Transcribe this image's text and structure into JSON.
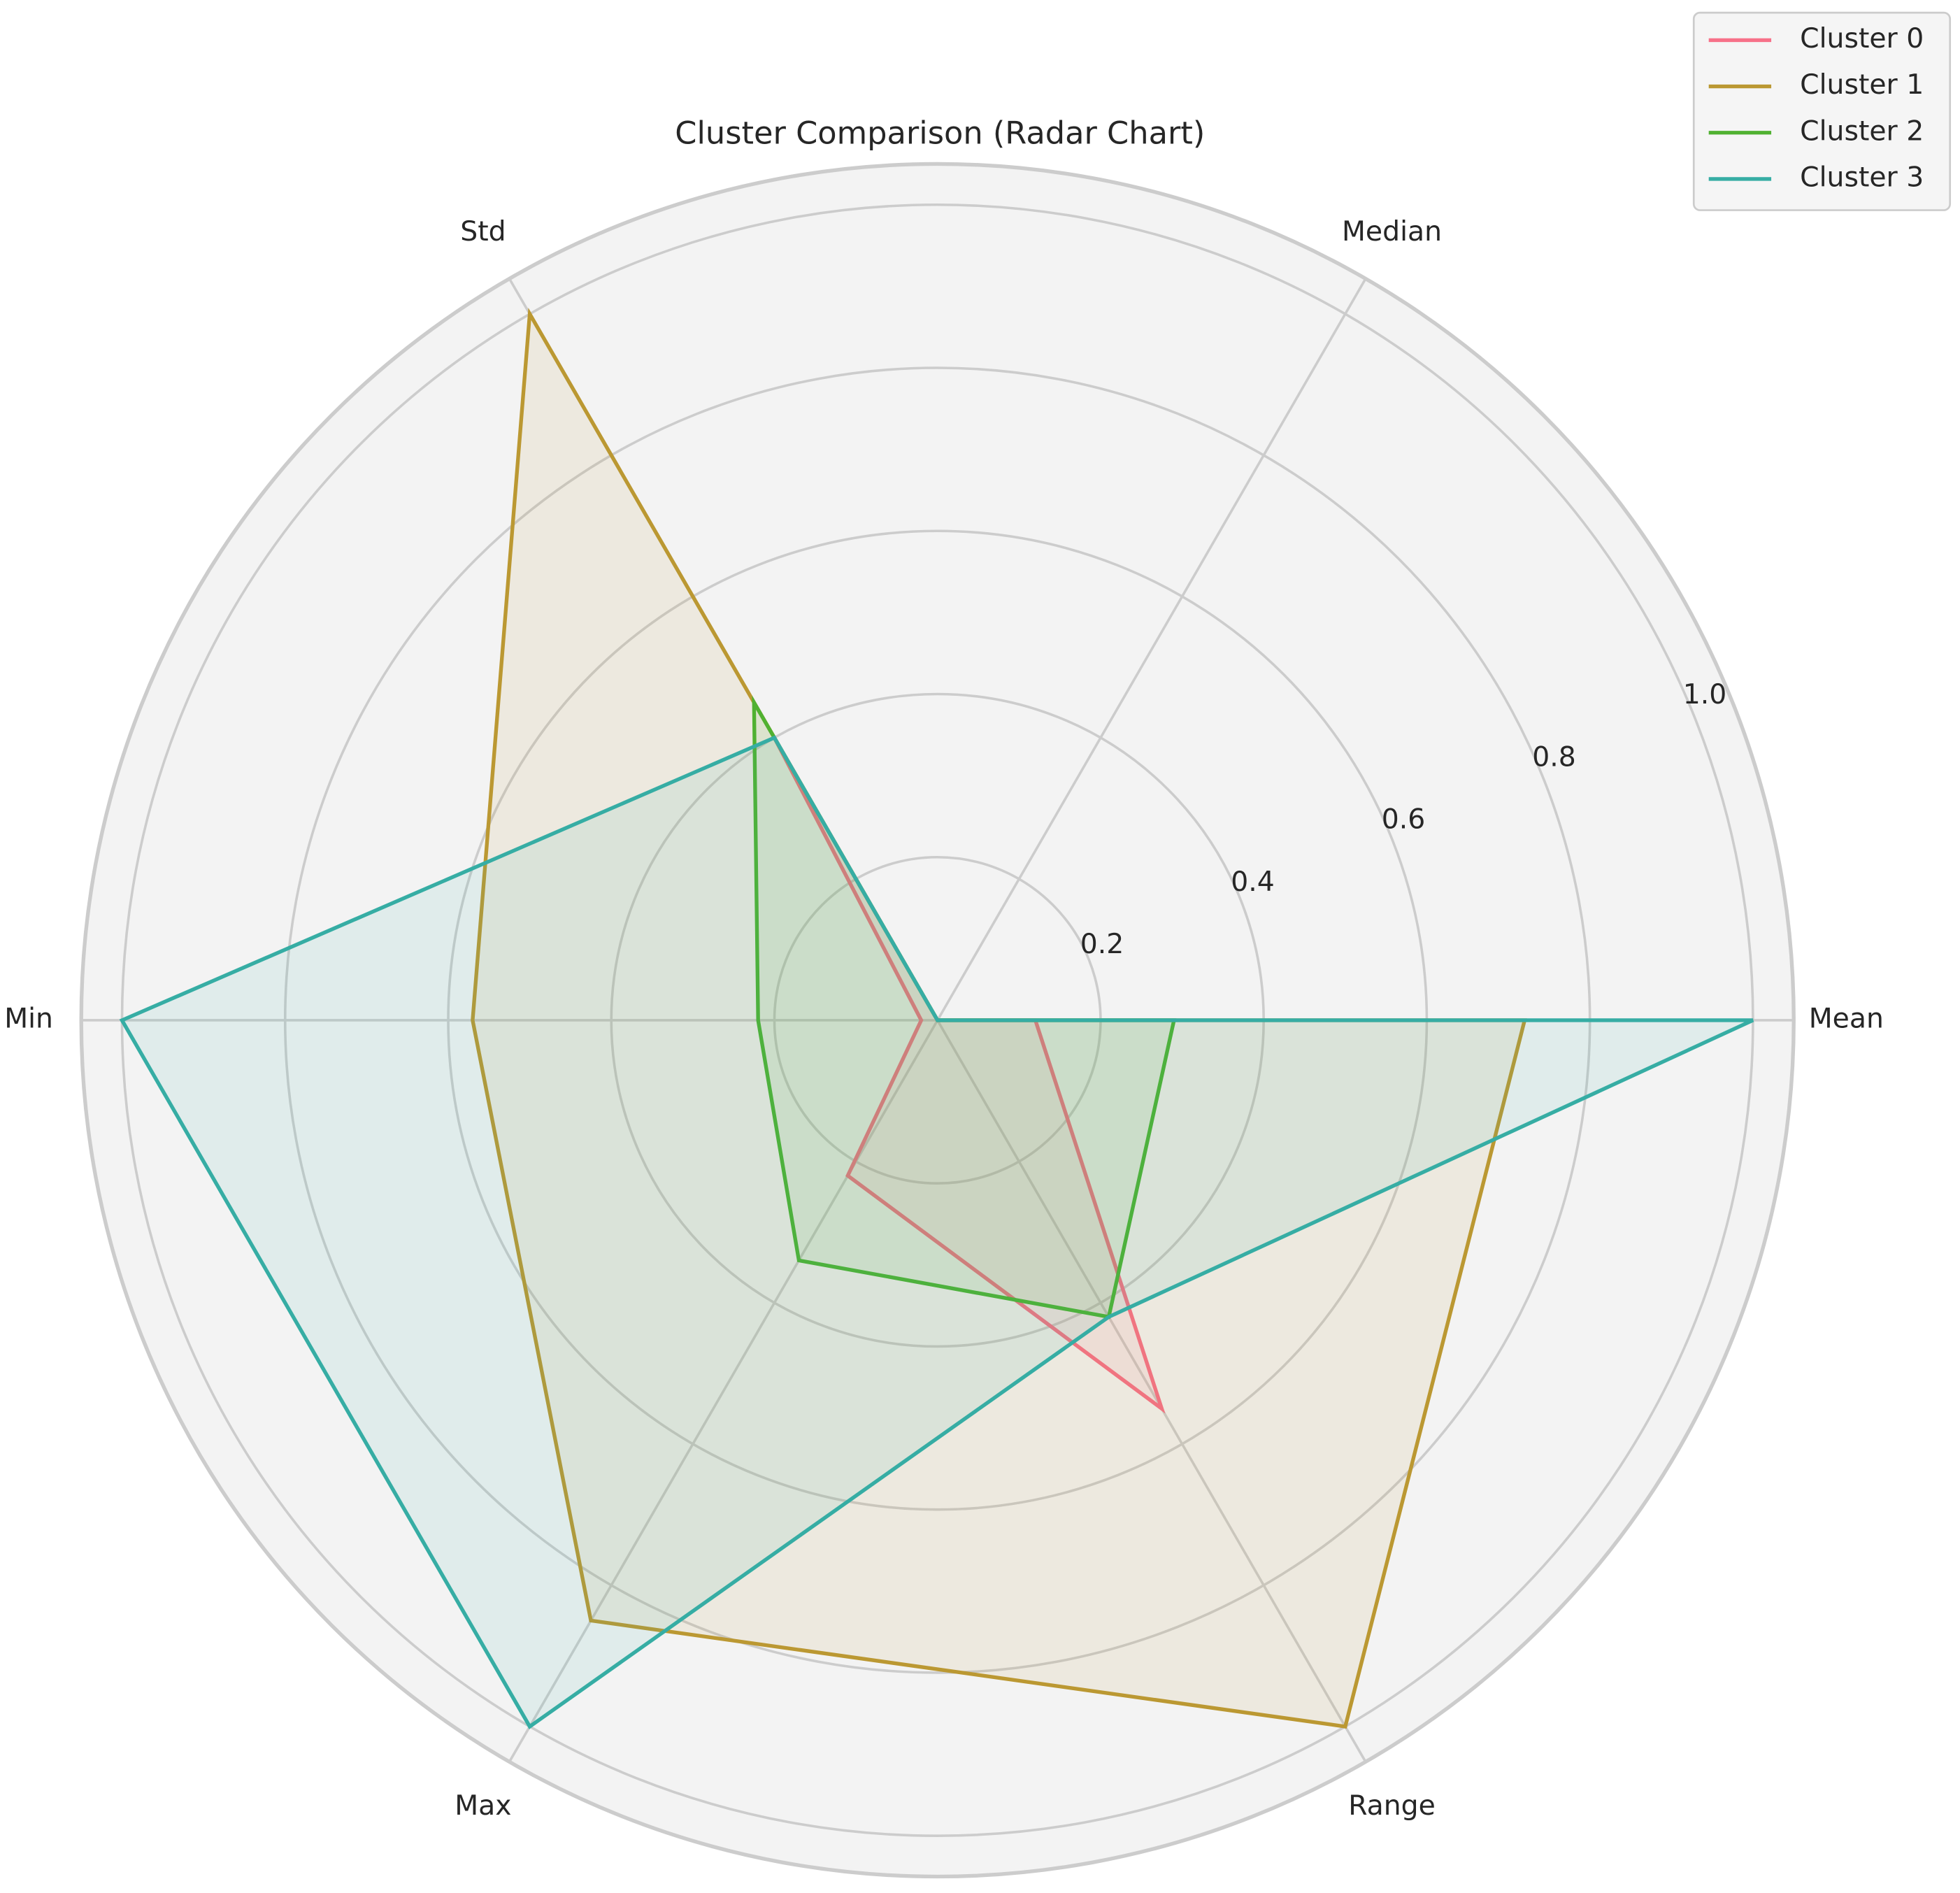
{
  "chart_data": {
    "type": "radar",
    "title": "Cluster Comparison (Radar Chart)",
    "categories": [
      "Mean",
      "Median",
      "Std",
      "Min",
      "Max",
      "Range"
    ],
    "series": [
      {
        "name": "Cluster 0",
        "color": "#f77189",
        "values": [
          0.12,
          0,
          0.4,
          0.02,
          0.22,
          0.55
        ]
      },
      {
        "name": "Cluster 1",
        "color": "#bb9832",
        "values": [
          0.72,
          0,
          1,
          0.57,
          0.85,
          1
        ]
      },
      {
        "name": "Cluster 2",
        "color": "#50b131",
        "values": [
          0.29,
          0,
          0.45,
          0.22,
          0.34,
          0.42
        ]
      },
      {
        "name": "Cluster 3",
        "color": "#36ada4",
        "values": [
          1,
          0,
          0.4,
          1,
          1,
          0.42
        ]
      }
    ],
    "ylim": [
      0,
      1.05
    ],
    "yticks": [
      0.2,
      0.4,
      0.6,
      0.8,
      {
        "value": 1,
        "label": "1.0"
      }
    ],
    "grid": true,
    "legend": "upper right"
  }
}
